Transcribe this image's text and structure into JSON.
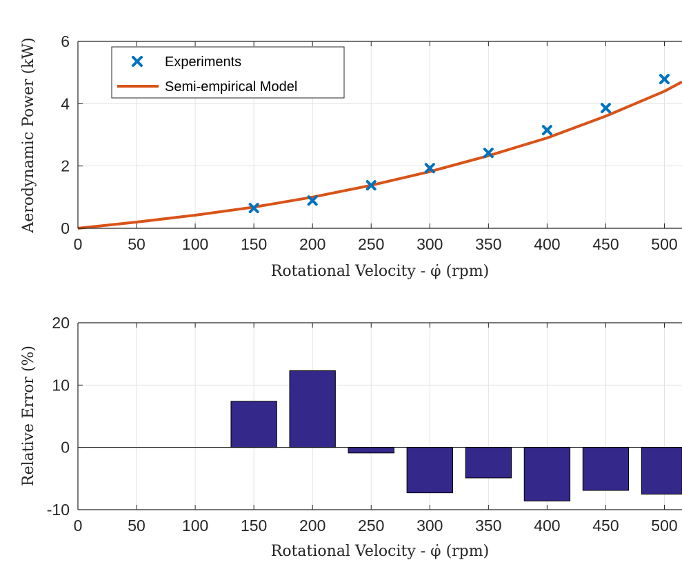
{
  "chart_data": [
    {
      "type": "line",
      "xlabel": "Rotational Velocity - φ̇ (rpm)",
      "ylabel": "Aerodynamic Power (kW)",
      "xlim": [
        0,
        515
      ],
      "ylim": [
        0,
        6
      ],
      "x_ticks": [
        0,
        50,
        100,
        150,
        200,
        250,
        300,
        350,
        400,
        450,
        500
      ],
      "y_ticks": [
        0,
        2,
        4,
        6
      ],
      "grid": true,
      "legend_position": "top-left",
      "colors": {
        "experiments": "#0072BD",
        "model": "#D95319"
      },
      "series": [
        {
          "name": "Experiments",
          "kind": "markers",
          "x": [
            150,
            200,
            250,
            300,
            350,
            400,
            450,
            500
          ],
          "y": [
            0.65,
            0.89,
            1.38,
            1.93,
            2.42,
            3.15,
            3.86,
            4.79
          ]
        },
        {
          "name": "Semi-empirical Model",
          "kind": "line",
          "x": [
            0,
            50,
            100,
            150,
            200,
            250,
            300,
            350,
            400,
            450,
            500,
            515
          ],
          "y": [
            0.0,
            0.2,
            0.42,
            0.68,
            1.0,
            1.38,
            1.82,
            2.33,
            2.9,
            3.6,
            4.4,
            4.7
          ]
        }
      ]
    },
    {
      "type": "bar",
      "xlabel": "Rotational Velocity - φ̇ (rpm)",
      "ylabel": "Relative Error (%)",
      "xlim": [
        0,
        515
      ],
      "ylim": [
        -10,
        20
      ],
      "x_ticks": [
        0,
        50,
        100,
        150,
        200,
        250,
        300,
        350,
        400,
        450,
        500
      ],
      "y_ticks": [
        -10,
        0,
        10,
        20
      ],
      "y_tick_labels": [
        "-10",
        "0",
        "10",
        "20"
      ],
      "grid": true,
      "bar_color": "#34288A",
      "x": [
        150,
        200,
        250,
        300,
        350,
        400,
        450,
        500
      ],
      "values": [
        7.4,
        12.3,
        -0.9,
        -7.3,
        -4.9,
        -8.6,
        -6.9,
        -7.5
      ]
    }
  ]
}
